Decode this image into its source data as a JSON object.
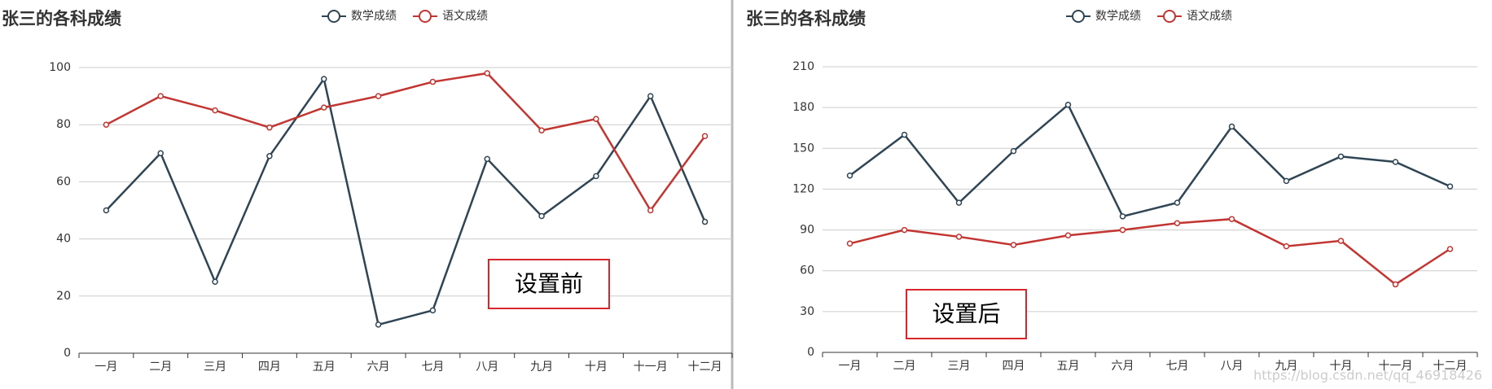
{
  "chart_data": [
    {
      "type": "line",
      "title": "张三的各科成绩",
      "categories": [
        "一月",
        "二月",
        "三月",
        "四月",
        "五月",
        "六月",
        "七月",
        "八月",
        "九月",
        "十月",
        "十一月",
        "十二月"
      ],
      "series": [
        {
          "name": "数学成绩",
          "color": "#2f4554",
          "values": [
            50,
            70,
            25,
            69,
            96,
            10,
            15,
            68,
            48,
            62,
            90,
            46
          ]
        },
        {
          "name": "语文成绩",
          "color": "#c23531",
          "values": [
            80,
            90,
            85,
            79,
            86,
            90,
            95,
            98,
            78,
            82,
            50,
            76
          ]
        }
      ],
      "ylim": [
        0,
        100
      ],
      "yticks": [
        0,
        20,
        40,
        60,
        80,
        100
      ],
      "grid": true,
      "annotation": "设置前"
    },
    {
      "type": "line",
      "title": "张三的各科成绩",
      "categories": [
        "一月",
        "二月",
        "三月",
        "四月",
        "五月",
        "六月",
        "七月",
        "八月",
        "九月",
        "十月",
        "十一月",
        "十二月"
      ],
      "series": [
        {
          "name": "数学成绩",
          "color": "#2f4554",
          "values": [
            130,
            160,
            110,
            148,
            182,
            100,
            110,
            166,
            126,
            144,
            140,
            122
          ]
        },
        {
          "name": "语文成绩",
          "color": "#c23531",
          "values": [
            80,
            90,
            85,
            79,
            86,
            90,
            95,
            98,
            78,
            82,
            50,
            76
          ]
        }
      ],
      "ylim": [
        0,
        210
      ],
      "yticks": [
        0,
        30,
        60,
        90,
        120,
        150,
        180,
        210
      ],
      "grid": true,
      "annotation": "设置后"
    }
  ],
  "watermark": "https://blog.csdn.net/qq_46918426"
}
